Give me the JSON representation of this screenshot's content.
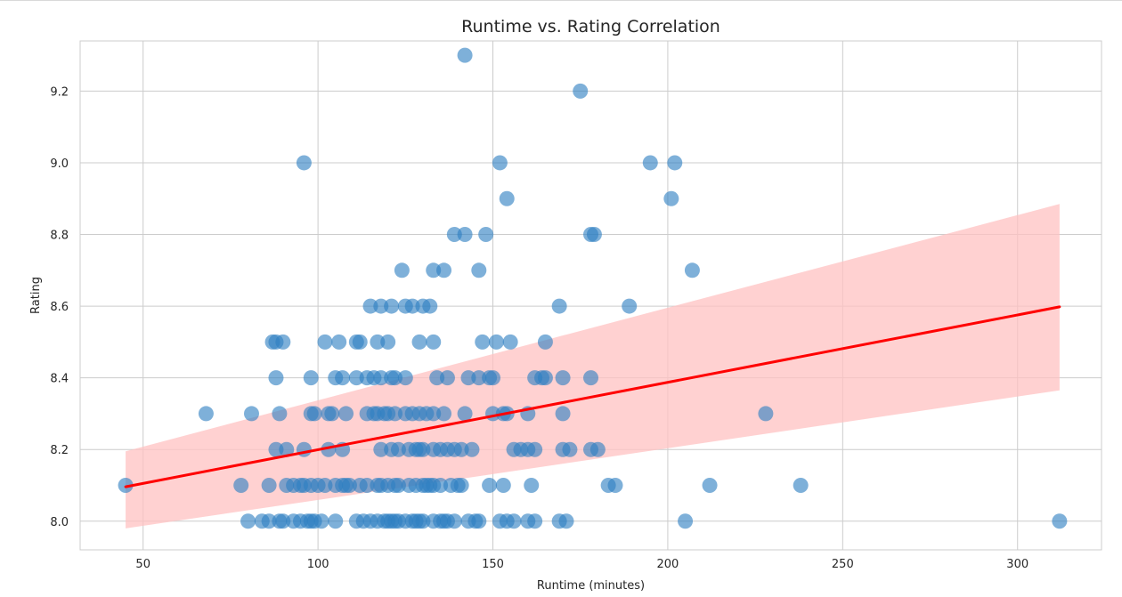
{
  "chart_data": {
    "type": "scatter",
    "title": "Runtime vs. Rating Correlation",
    "xlabel": "Runtime (minutes)",
    "ylabel": "Rating",
    "xlim": [
      32,
      324
    ],
    "ylim": [
      7.92,
      9.34
    ],
    "xticks": [
      50,
      100,
      150,
      200,
      250,
      300
    ],
    "yticks": [
      8.0,
      8.2,
      8.4,
      8.6,
      8.8,
      9.0,
      9.2
    ],
    "grid": true,
    "colors": {
      "points": "#2f7fc1",
      "regression_line": "#ff0000",
      "confidence_band": "#ffc2c2",
      "grid": "#cccccc",
      "axes_frame": "#cccccc"
    },
    "regression": {
      "x": [
        45,
        312
      ],
      "y": [
        8.096,
        8.598
      ],
      "ci_lower": [
        7.98,
        8.365
      ],
      "ci_upper": [
        8.195,
        8.885
      ]
    },
    "points": [
      {
        "x": 142,
        "y": 9.3
      },
      {
        "x": 175,
        "y": 9.2
      },
      {
        "x": 96,
        "y": 9.0
      },
      {
        "x": 152,
        "y": 9.0
      },
      {
        "x": 195,
        "y": 9.0
      },
      {
        "x": 202,
        "y": 9.0
      },
      {
        "x": 154,
        "y": 8.9
      },
      {
        "x": 201,
        "y": 8.9
      },
      {
        "x": 139,
        "y": 8.8
      },
      {
        "x": 142,
        "y": 8.8
      },
      {
        "x": 148,
        "y": 8.8
      },
      {
        "x": 178,
        "y": 8.8
      },
      {
        "x": 179,
        "y": 8.8
      },
      {
        "x": 124,
        "y": 8.7
      },
      {
        "x": 133,
        "y": 8.7
      },
      {
        "x": 136,
        "y": 8.7
      },
      {
        "x": 146,
        "y": 8.7
      },
      {
        "x": 207,
        "y": 8.7
      },
      {
        "x": 115,
        "y": 8.6
      },
      {
        "x": 118,
        "y": 8.6
      },
      {
        "x": 121,
        "y": 8.6
      },
      {
        "x": 125,
        "y": 8.6
      },
      {
        "x": 127,
        "y": 8.6
      },
      {
        "x": 130,
        "y": 8.6
      },
      {
        "x": 132,
        "y": 8.6
      },
      {
        "x": 169,
        "y": 8.6
      },
      {
        "x": 189,
        "y": 8.6
      },
      {
        "x": 87,
        "y": 8.5
      },
      {
        "x": 88,
        "y": 8.5
      },
      {
        "x": 90,
        "y": 8.5
      },
      {
        "x": 102,
        "y": 8.5
      },
      {
        "x": 106,
        "y": 8.5
      },
      {
        "x": 111,
        "y": 8.5
      },
      {
        "x": 112,
        "y": 8.5
      },
      {
        "x": 117,
        "y": 8.5
      },
      {
        "x": 120,
        "y": 8.5
      },
      {
        "x": 129,
        "y": 8.5
      },
      {
        "x": 133,
        "y": 8.5
      },
      {
        "x": 147,
        "y": 8.5
      },
      {
        "x": 151,
        "y": 8.5
      },
      {
        "x": 155,
        "y": 8.5
      },
      {
        "x": 165,
        "y": 8.5
      },
      {
        "x": 88,
        "y": 8.4
      },
      {
        "x": 98,
        "y": 8.4
      },
      {
        "x": 105,
        "y": 8.4
      },
      {
        "x": 107,
        "y": 8.4
      },
      {
        "x": 111,
        "y": 8.4
      },
      {
        "x": 114,
        "y": 8.4
      },
      {
        "x": 116,
        "y": 8.4
      },
      {
        "x": 118,
        "y": 8.4
      },
      {
        "x": 121,
        "y": 8.4
      },
      {
        "x": 122,
        "y": 8.4
      },
      {
        "x": 125,
        "y": 8.4
      },
      {
        "x": 134,
        "y": 8.4
      },
      {
        "x": 137,
        "y": 8.4
      },
      {
        "x": 143,
        "y": 8.4
      },
      {
        "x": 146,
        "y": 8.4
      },
      {
        "x": 149,
        "y": 8.4
      },
      {
        "x": 150,
        "y": 8.4
      },
      {
        "x": 162,
        "y": 8.4
      },
      {
        "x": 164,
        "y": 8.4
      },
      {
        "x": 165,
        "y": 8.4
      },
      {
        "x": 170,
        "y": 8.4
      },
      {
        "x": 178,
        "y": 8.4
      },
      {
        "x": 68,
        "y": 8.3
      },
      {
        "x": 81,
        "y": 8.3
      },
      {
        "x": 89,
        "y": 8.3
      },
      {
        "x": 98,
        "y": 8.3
      },
      {
        "x": 99,
        "y": 8.3
      },
      {
        "x": 103,
        "y": 8.3
      },
      {
        "x": 104,
        "y": 8.3
      },
      {
        "x": 108,
        "y": 8.3
      },
      {
        "x": 114,
        "y": 8.3
      },
      {
        "x": 116,
        "y": 8.3
      },
      {
        "x": 117,
        "y": 8.3
      },
      {
        "x": 119,
        "y": 8.3
      },
      {
        "x": 120,
        "y": 8.3
      },
      {
        "x": 122,
        "y": 8.3
      },
      {
        "x": 125,
        "y": 8.3
      },
      {
        "x": 127,
        "y": 8.3
      },
      {
        "x": 129,
        "y": 8.3
      },
      {
        "x": 131,
        "y": 8.3
      },
      {
        "x": 133,
        "y": 8.3
      },
      {
        "x": 136,
        "y": 8.3
      },
      {
        "x": 142,
        "y": 8.3
      },
      {
        "x": 150,
        "y": 8.3
      },
      {
        "x": 153,
        "y": 8.3
      },
      {
        "x": 154,
        "y": 8.3
      },
      {
        "x": 160,
        "y": 8.3
      },
      {
        "x": 170,
        "y": 8.3
      },
      {
        "x": 228,
        "y": 8.3
      },
      {
        "x": 88,
        "y": 8.2
      },
      {
        "x": 91,
        "y": 8.2
      },
      {
        "x": 96,
        "y": 8.2
      },
      {
        "x": 103,
        "y": 8.2
      },
      {
        "x": 107,
        "y": 8.2
      },
      {
        "x": 118,
        "y": 8.2
      },
      {
        "x": 121,
        "y": 8.2
      },
      {
        "x": 123,
        "y": 8.2
      },
      {
        "x": 126,
        "y": 8.2
      },
      {
        "x": 128,
        "y": 8.2
      },
      {
        "x": 129,
        "y": 8.2
      },
      {
        "x": 130,
        "y": 8.2
      },
      {
        "x": 133,
        "y": 8.2
      },
      {
        "x": 135,
        "y": 8.2
      },
      {
        "x": 137,
        "y": 8.2
      },
      {
        "x": 139,
        "y": 8.2
      },
      {
        "x": 141,
        "y": 8.2
      },
      {
        "x": 144,
        "y": 8.2
      },
      {
        "x": 156,
        "y": 8.2
      },
      {
        "x": 158,
        "y": 8.2
      },
      {
        "x": 160,
        "y": 8.2
      },
      {
        "x": 162,
        "y": 8.2
      },
      {
        "x": 170,
        "y": 8.2
      },
      {
        "x": 172,
        "y": 8.2
      },
      {
        "x": 178,
        "y": 8.2
      },
      {
        "x": 180,
        "y": 8.2
      },
      {
        "x": 45,
        "y": 8.1
      },
      {
        "x": 78,
        "y": 8.1
      },
      {
        "x": 86,
        "y": 8.1
      },
      {
        "x": 91,
        "y": 8.1
      },
      {
        "x": 93,
        "y": 8.1
      },
      {
        "x": 95,
        "y": 8.1
      },
      {
        "x": 96,
        "y": 8.1
      },
      {
        "x": 98,
        "y": 8.1
      },
      {
        "x": 100,
        "y": 8.1
      },
      {
        "x": 102,
        "y": 8.1
      },
      {
        "x": 105,
        "y": 8.1
      },
      {
        "x": 107,
        "y": 8.1
      },
      {
        "x": 108,
        "y": 8.1
      },
      {
        "x": 109,
        "y": 8.1
      },
      {
        "x": 112,
        "y": 8.1
      },
      {
        "x": 114,
        "y": 8.1
      },
      {
        "x": 117,
        "y": 8.1
      },
      {
        "x": 118,
        "y": 8.1
      },
      {
        "x": 120,
        "y": 8.1
      },
      {
        "x": 122,
        "y": 8.1
      },
      {
        "x": 123,
        "y": 8.1
      },
      {
        "x": 126,
        "y": 8.1
      },
      {
        "x": 128,
        "y": 8.1
      },
      {
        "x": 130,
        "y": 8.1
      },
      {
        "x": 131,
        "y": 8.1
      },
      {
        "x": 132,
        "y": 8.1
      },
      {
        "x": 133,
        "y": 8.1
      },
      {
        "x": 135,
        "y": 8.1
      },
      {
        "x": 138,
        "y": 8.1
      },
      {
        "x": 140,
        "y": 8.1
      },
      {
        "x": 141,
        "y": 8.1
      },
      {
        "x": 149,
        "y": 8.1
      },
      {
        "x": 153,
        "y": 8.1
      },
      {
        "x": 161,
        "y": 8.1
      },
      {
        "x": 183,
        "y": 8.1
      },
      {
        "x": 185,
        "y": 8.1
      },
      {
        "x": 212,
        "y": 8.1
      },
      {
        "x": 238,
        "y": 8.1
      },
      {
        "x": 80,
        "y": 8.0
      },
      {
        "x": 84,
        "y": 8.0
      },
      {
        "x": 86,
        "y": 8.0
      },
      {
        "x": 89,
        "y": 8.0
      },
      {
        "x": 90,
        "y": 8.0
      },
      {
        "x": 93,
        "y": 8.0
      },
      {
        "x": 95,
        "y": 8.0
      },
      {
        "x": 97,
        "y": 8.0
      },
      {
        "x": 98,
        "y": 8.0
      },
      {
        "x": 99,
        "y": 8.0
      },
      {
        "x": 101,
        "y": 8.0
      },
      {
        "x": 105,
        "y": 8.0
      },
      {
        "x": 111,
        "y": 8.0
      },
      {
        "x": 113,
        "y": 8.0
      },
      {
        "x": 115,
        "y": 8.0
      },
      {
        "x": 117,
        "y": 8.0
      },
      {
        "x": 119,
        "y": 8.0
      },
      {
        "x": 120,
        "y": 8.0
      },
      {
        "x": 121,
        "y": 8.0
      },
      {
        "x": 122,
        "y": 8.0
      },
      {
        "x": 123,
        "y": 8.0
      },
      {
        "x": 125,
        "y": 8.0
      },
      {
        "x": 127,
        "y": 8.0
      },
      {
        "x": 128,
        "y": 8.0
      },
      {
        "x": 129,
        "y": 8.0
      },
      {
        "x": 130,
        "y": 8.0
      },
      {
        "x": 133,
        "y": 8.0
      },
      {
        "x": 135,
        "y": 8.0
      },
      {
        "x": 136,
        "y": 8.0
      },
      {
        "x": 137,
        "y": 8.0
      },
      {
        "x": 139,
        "y": 8.0
      },
      {
        "x": 143,
        "y": 8.0
      },
      {
        "x": 145,
        "y": 8.0
      },
      {
        "x": 146,
        "y": 8.0
      },
      {
        "x": 152,
        "y": 8.0
      },
      {
        "x": 154,
        "y": 8.0
      },
      {
        "x": 156,
        "y": 8.0
      },
      {
        "x": 160,
        "y": 8.0
      },
      {
        "x": 162,
        "y": 8.0
      },
      {
        "x": 169,
        "y": 8.0
      },
      {
        "x": 171,
        "y": 8.0
      },
      {
        "x": 205,
        "y": 8.0
      },
      {
        "x": 312,
        "y": 8.0
      }
    ]
  }
}
